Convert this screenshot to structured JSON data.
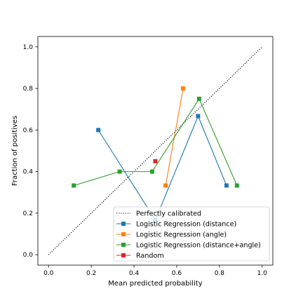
{
  "chart_data": {
    "type": "line",
    "title": "",
    "xlabel": "Mean predicted probability",
    "ylabel": "Fraction of positives",
    "xlim": [
      -0.05,
      1.05
    ],
    "ylim": [
      -0.05,
      1.05
    ],
    "x_ticks": [
      "0.0",
      "0.2",
      "0.4",
      "0.6",
      "0.8",
      "1.0"
    ],
    "y_ticks": [
      "0.0",
      "0.2",
      "0.4",
      "0.6",
      "0.8",
      "1.0"
    ],
    "grid": false,
    "legend_position": "bottom-right",
    "series": [
      {
        "name": "Perfectly calibrated",
        "color": "#000000",
        "style": "dotted",
        "marker": "none",
        "points": [
          [
            0.0,
            0.0
          ],
          [
            1.0,
            1.0
          ]
        ]
      },
      {
        "name": "Logistic Regression (distance)",
        "color": "#1f77b4",
        "style": "solid",
        "marker": "square",
        "points": [
          [
            0.233,
            0.6
          ],
          [
            0.5,
            0.167
          ],
          [
            0.7,
            0.667
          ],
          [
            0.833,
            0.333
          ]
        ]
      },
      {
        "name": "Logistic Regression (angle)",
        "color": "#ff7f0e",
        "style": "solid",
        "marker": "square",
        "points": [
          [
            0.548,
            0.333
          ],
          [
            0.63,
            0.8
          ]
        ]
      },
      {
        "name": "Logistic Regression (distance+angle)",
        "color": "#2ca02c",
        "style": "solid",
        "marker": "square",
        "points": [
          [
            0.118,
            0.333
          ],
          [
            0.333,
            0.4
          ],
          [
            0.485,
            0.4
          ],
          [
            0.705,
            0.75
          ],
          [
            0.882,
            0.333
          ]
        ]
      },
      {
        "name": "Random",
        "color": "#d62728",
        "style": "solid",
        "marker": "square",
        "points": [
          [
            0.5,
            0.45
          ]
        ]
      }
    ]
  }
}
